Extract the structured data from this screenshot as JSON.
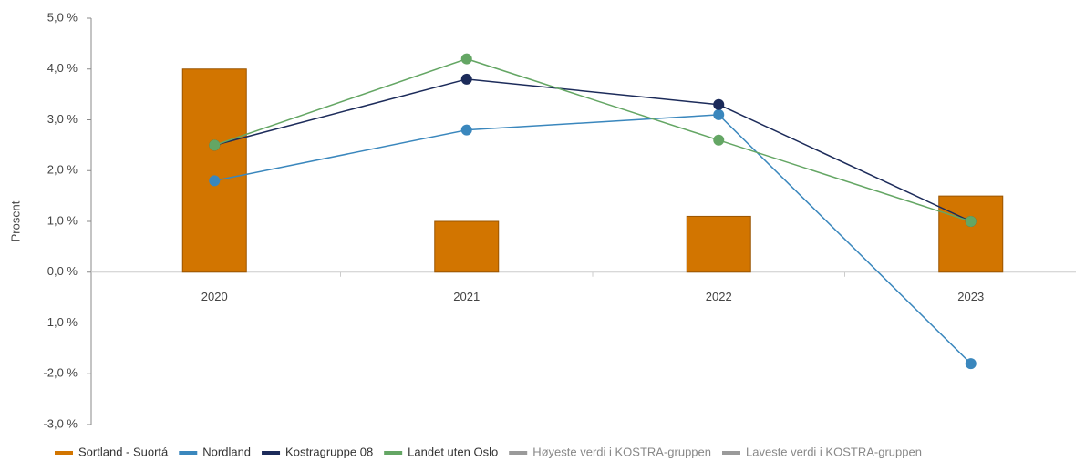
{
  "chart_data": {
    "type": "bar",
    "y_label": "Prosent",
    "categories": [
      "2020",
      "2021",
      "2022",
      "2023"
    ],
    "ylim": [
      -3,
      5
    ],
    "yticks": [
      {
        "value": -3,
        "label": "-3,0 %"
      },
      {
        "value": -2,
        "label": "-2,0 %"
      },
      {
        "value": -1,
        "label": "-1,0 %"
      },
      {
        "value": 0,
        "label": "0,0 %"
      },
      {
        "value": 1,
        "label": "1,0 %"
      },
      {
        "value": 2,
        "label": "2,0 %"
      },
      {
        "value": 3,
        "label": "3,0 %"
      },
      {
        "value": 4,
        "label": "4,0 %"
      },
      {
        "value": 5,
        "label": "5,0 %"
      }
    ],
    "series": [
      {
        "name": "Sortland - Suortá",
        "type": "bar",
        "color": "#d27500",
        "values": [
          4.0,
          1.0,
          1.1,
          1.5
        ]
      },
      {
        "name": "Nordland",
        "type": "line",
        "color": "#3a87bd",
        "values": [
          1.8,
          2.8,
          3.1,
          -1.8
        ]
      },
      {
        "name": "Kostragruppe 08",
        "type": "line",
        "color": "#1c2b5a",
        "values": [
          2.5,
          3.8,
          3.3,
          1.0
        ]
      },
      {
        "name": "Landet uten Oslo",
        "type": "line",
        "color": "#64a664",
        "values": [
          2.5,
          4.2,
          2.6,
          1.0
        ]
      },
      {
        "name": "Høyeste verdi i KOSTRA-gruppen",
        "type": "line",
        "color": "#9a9a9a",
        "values": [
          null,
          null,
          null,
          null
        ]
      },
      {
        "name": "Laveste verdi i KOSTRA-gruppen",
        "type": "line",
        "color": "#9a9a9a",
        "values": [
          null,
          null,
          null,
          null
        ]
      }
    ]
  }
}
